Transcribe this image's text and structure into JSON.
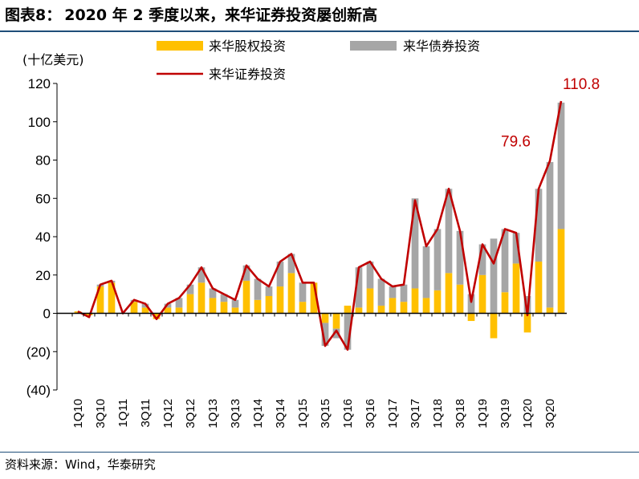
{
  "figure": {
    "label": "图表8：",
    "title": "2020 年 2 季度以来，来华证券投资屡创新高",
    "source": "资料来源：Wind，华泰研究"
  },
  "chart_data": {
    "type": "bar",
    "stacked": true,
    "unit_label": "(十亿美元)",
    "ylim": [
      -40,
      120
    ],
    "yticks": [
      -40,
      -20,
      0,
      20,
      40,
      60,
      80,
      100,
      120
    ],
    "ytick_labels": [
      "(40)",
      "(20)",
      "0",
      "20",
      "40",
      "60",
      "80",
      "100",
      "120"
    ],
    "categories": [
      "1Q10",
      "2Q10",
      "3Q10",
      "4Q10",
      "1Q11",
      "2Q11",
      "3Q11",
      "4Q11",
      "1Q12",
      "2Q12",
      "3Q12",
      "4Q12",
      "1Q13",
      "2Q13",
      "3Q13",
      "4Q13",
      "1Q14",
      "2Q14",
      "3Q14",
      "4Q14",
      "1Q15",
      "2Q15",
      "3Q15",
      "4Q15",
      "1Q16",
      "2Q16",
      "3Q16",
      "4Q16",
      "1Q17",
      "2Q17",
      "3Q17",
      "4Q17",
      "1Q18",
      "2Q18",
      "3Q18",
      "4Q18",
      "1Q19",
      "2Q19",
      "3Q19",
      "4Q19",
      "1Q20",
      "2Q20",
      "3Q20",
      "4Q20"
    ],
    "tick_labels_shown": [
      "1Q10",
      "3Q10",
      "1Q11",
      "3Q11",
      "1Q12",
      "3Q12",
      "1Q13",
      "3Q13",
      "1Q14",
      "3Q14",
      "1Q15",
      "3Q15",
      "1Q16",
      "3Q16",
      "1Q17",
      "3Q17",
      "1Q18",
      "3Q18",
      "1Q19",
      "3Q19",
      "1Q20",
      "3Q20"
    ],
    "series": [
      {
        "name": "来华股权投资",
        "kind": "bar",
        "color": "#FFC000",
        "values": [
          1,
          -1,
          14,
          16,
          0,
          6,
          3,
          -3,
          3,
          3,
          10,
          16,
          8,
          6,
          3,
          17,
          7,
          9,
          14,
          21,
          6,
          16,
          -5,
          -8,
          4,
          3,
          13,
          4,
          8,
          6,
          13,
          8,
          12,
          21,
          15,
          -4,
          20,
          -13,
          11,
          26,
          -10,
          27,
          3,
          44
        ]
      },
      {
        "name": "来华债券投资",
        "kind": "bar",
        "color": "#A6A6A6",
        "values": [
          0,
          0,
          1,
          1,
          0,
          1,
          2,
          0,
          2,
          5,
          5,
          8,
          5,
          4,
          4,
          8,
          11,
          5,
          13,
          10,
          10,
          0,
          -12,
          -5,
          -19,
          21,
          14,
          14,
          6,
          9,
          47,
          27,
          32,
          44,
          28,
          10,
          16,
          39,
          33,
          16,
          9,
          38,
          76,
          66
        ]
      },
      {
        "name": "来华证券投资",
        "kind": "line",
        "color": "#C00000",
        "values": [
          1,
          -2,
          15,
          17,
          0,
          7,
          5,
          -3,
          5,
          8,
          15,
          24,
          13,
          10,
          7,
          25,
          18,
          14,
          27,
          31,
          16,
          16,
          -17,
          -9,
          -19,
          24,
          27,
          18,
          14,
          15,
          59,
          35,
          44,
          65,
          43,
          6,
          36,
          26,
          44,
          42,
          -1,
          65,
          79.6,
          110.8
        ]
      }
    ],
    "annotations": [
      {
        "category": "3Q20",
        "text": "79.6"
      },
      {
        "category": "4Q20",
        "text": "110.8"
      }
    ],
    "legend_position": "top"
  }
}
